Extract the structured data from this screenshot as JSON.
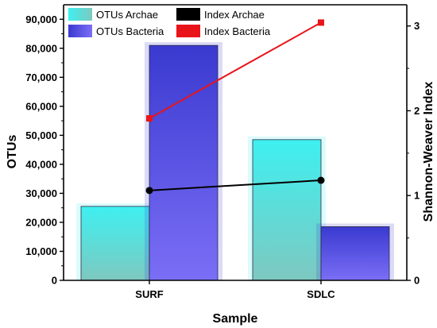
{
  "chart_data": {
    "type": "bar",
    "categories": [
      "SURF",
      "SDLC"
    ],
    "xlabel": "Sample",
    "ylabel": "OTUs",
    "y2label": "Shannon-Weaver Index",
    "ylim": [
      0,
      95000
    ],
    "y2lim": [
      0,
      3.25
    ],
    "yticks": [
      0,
      10000,
      20000,
      30000,
      40000,
      50000,
      60000,
      70000,
      80000,
      90000
    ],
    "yticklabels": [
      "0",
      "10,000",
      "20,000",
      "30,000",
      "40,000",
      "50,000",
      "60,000",
      "70,000",
      "80,000",
      "90,000"
    ],
    "y2ticks": [
      0,
      1,
      2,
      3
    ],
    "y2ticklabels": [
      "0",
      "1",
      "2",
      "3"
    ],
    "grid": false,
    "legend_position": "top-left",
    "bar_series": [
      {
        "name": "OTUs Archae",
        "values": [
          25500,
          48500
        ],
        "color_top": "#3ef0f0",
        "color_bottom": "#7ec8c0"
      },
      {
        "name": "OTUs Bacteria",
        "values": [
          81000,
          18500
        ],
        "color_top": "#3a3ad0",
        "color_bottom": "#7b6ef6"
      }
    ],
    "line_series": [
      {
        "name": "Index Archae",
        "values": [
          1.06,
          1.18
        ],
        "color": "#000000",
        "marker": "circle",
        "axis": "right"
      },
      {
        "name": "Index Bacteria",
        "values": [
          1.91,
          3.04
        ],
        "color": "#e8141a",
        "marker": "square",
        "axis": "right"
      }
    ]
  }
}
